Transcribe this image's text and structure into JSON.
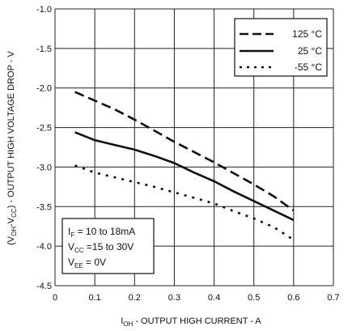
{
  "chart_data": {
    "type": "line",
    "xlabel_main": "I",
    "xlabel_sub": "OH",
    "xlabel_rest": " - OUTPUT HIGH CURRENT - A",
    "ylabel_parts": [
      "(V",
      "OH",
      "-V",
      "CC",
      ") - OUTPUT HIGH VOLTAGE DROP - V"
    ],
    "xlim": [
      0,
      0.7
    ],
    "ylim": [
      -4.5,
      -1.0
    ],
    "xticks": [
      0,
      0.1,
      0.2,
      0.3,
      0.4,
      0.5,
      0.6,
      0.7
    ],
    "xtick_labels": [
      "0",
      "0.1",
      "0.2",
      "0.3",
      "0.4",
      "0.5",
      "0.6",
      "0.7"
    ],
    "yticks": [
      -1.0,
      -1.5,
      -2.0,
      -2.5,
      -3.0,
      -3.5,
      -4.0,
      -4.5
    ],
    "ytick_labels": [
      "-1.0",
      "-1.5",
      "-2.0",
      "-2.5",
      "-3.0",
      "-3.5",
      "-4.0",
      "-4.5"
    ],
    "grid": true,
    "legend_position": "top-right",
    "series": [
      {
        "name": "125 °C",
        "style": "long-dash",
        "x": [
          0.05,
          0.1,
          0.15,
          0.2,
          0.25,
          0.3,
          0.35,
          0.4,
          0.45,
          0.5,
          0.55,
          0.6
        ],
        "y": [
          -2.05,
          -2.16,
          -2.27,
          -2.4,
          -2.54,
          -2.68,
          -2.81,
          -2.94,
          -3.08,
          -3.22,
          -3.37,
          -3.55
        ]
      },
      {
        "name": "25 °C",
        "style": "solid",
        "x": [
          0.05,
          0.1,
          0.15,
          0.2,
          0.25,
          0.3,
          0.35,
          0.4,
          0.45,
          0.5,
          0.55,
          0.6
        ],
        "y": [
          -2.56,
          -2.66,
          -2.72,
          -2.78,
          -2.86,
          -2.95,
          -3.07,
          -3.18,
          -3.31,
          -3.43,
          -3.55,
          -3.67
        ]
      },
      {
        "name": "-55 °C",
        "style": "dotted",
        "x": [
          0.05,
          0.1,
          0.15,
          0.2,
          0.25,
          0.3,
          0.35,
          0.4,
          0.45,
          0.5,
          0.55,
          0.6
        ],
        "y": [
          -2.98,
          -3.07,
          -3.13,
          -3.19,
          -3.25,
          -3.32,
          -3.39,
          -3.46,
          -3.56,
          -3.65,
          -3.76,
          -3.92
        ]
      }
    ],
    "legend_labels": [
      "125 °C",
      "25 °C",
      "-55 °C"
    ],
    "conditions": [
      {
        "main": "I",
        "sub": "F",
        "rest": " = 10 to 18mA"
      },
      {
        "main": "V",
        "sub": "CC",
        "rest": " =15 to 30V"
      },
      {
        "main": "V",
        "sub": "EE",
        "rest": " = 0V"
      }
    ],
    "colors": {
      "line": "#111111",
      "grid": "#222222",
      "background": "#ffffff"
    }
  }
}
